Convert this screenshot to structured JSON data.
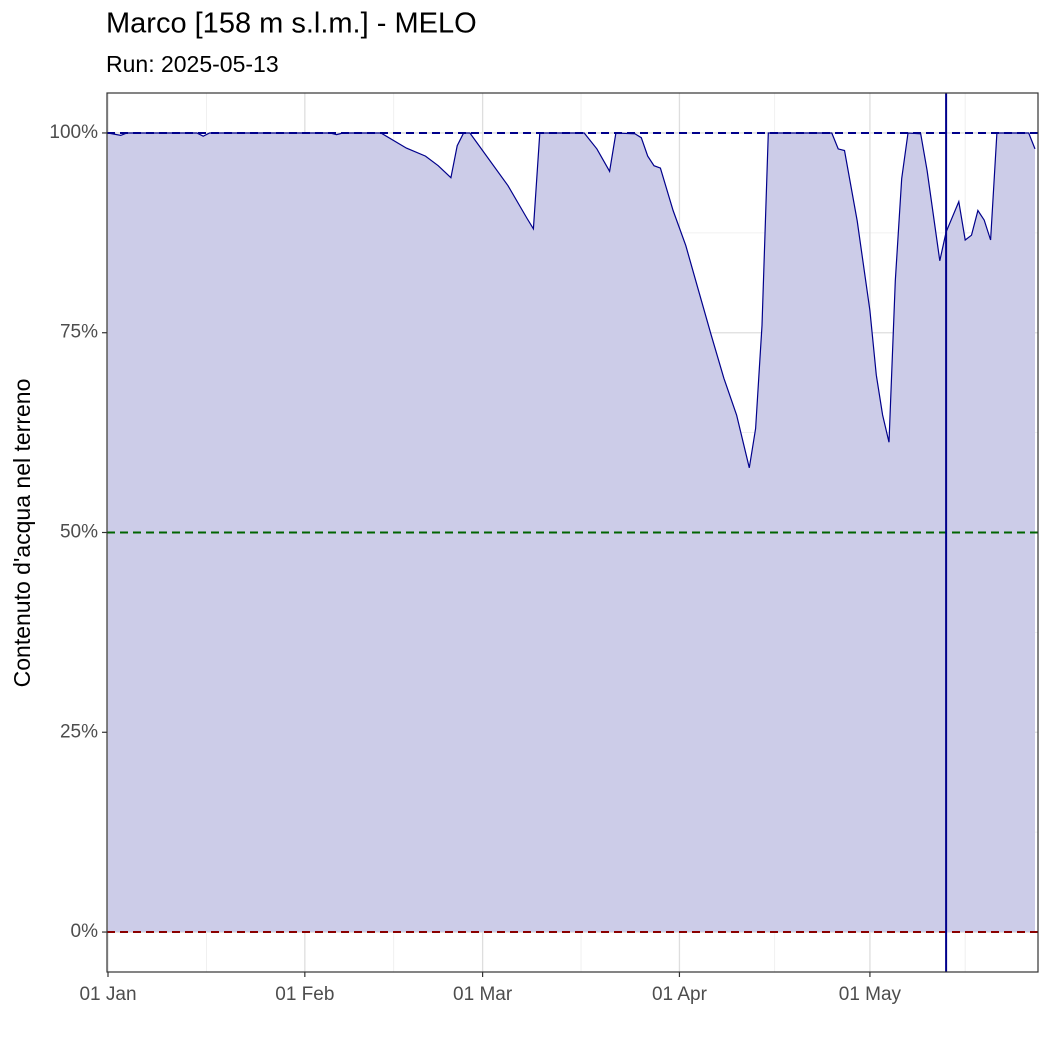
{
  "chart_data": {
    "type": "area",
    "title": "Marco [158 m s.l.m.] - MELO",
    "subtitle": "Run: 2025-05-13",
    "y_label": "Contenuto d'acqua nel terreno",
    "x": [
      "2025-01-01",
      "2025-01-03",
      "2025-01-04",
      "2025-01-15",
      "2025-01-16",
      "2025-01-17",
      "2025-02-05",
      "2025-02-06",
      "2025-02-07",
      "2025-02-13",
      "2025-02-17",
      "2025-02-20",
      "2025-02-22",
      "2025-02-24",
      "2025-02-25",
      "2025-02-26",
      "2025-02-27",
      "2025-03-05",
      "2025-03-08",
      "2025-03-09",
      "2025-03-10",
      "2025-03-17",
      "2025-03-19",
      "2025-03-21",
      "2025-03-22",
      "2025-03-25",
      "2025-03-26",
      "2025-03-27",
      "2025-03-28",
      "2025-03-29",
      "2025-03-31",
      "2025-04-02",
      "2025-04-04",
      "2025-04-06",
      "2025-04-08",
      "2025-04-10",
      "2025-04-12",
      "2025-04-13",
      "2025-04-14",
      "2025-04-15",
      "2025-04-25",
      "2025-04-26",
      "2025-04-27",
      "2025-04-29",
      "2025-05-01",
      "2025-05-02",
      "2025-05-03",
      "2025-05-04",
      "2025-05-05",
      "2025-05-06",
      "2025-05-07",
      "2025-05-09",
      "2025-05-10",
      "2025-05-12",
      "2025-05-13",
      "2025-05-15",
      "2025-05-16",
      "2025-05-17",
      "2025-05-18",
      "2025-05-19",
      "2025-05-20",
      "2025-05-21",
      "2025-05-26",
      "2025-05-27"
    ],
    "values": [
      100,
      99.7,
      100,
      100,
      99.6,
      100,
      100,
      99.8,
      100,
      100,
      98.1,
      97.1,
      95.9,
      94.4,
      98.4,
      100,
      100,
      93.4,
      89.3,
      88.0,
      100,
      100,
      98.0,
      95.2,
      100,
      99.9,
      99.4,
      97.1,
      95.9,
      95.6,
      90.3,
      85.9,
      80.3,
      74.7,
      69.3,
      64.7,
      58.1,
      63.0,
      75.9,
      100,
      100,
      98.0,
      97.8,
      89.0,
      77.8,
      69.7,
      64.7,
      61.3,
      81.5,
      94.3,
      100,
      99.9,
      95.3,
      84.0,
      87.6,
      91.4,
      86.6,
      87.2,
      90.3,
      89.1,
      86.6,
      100,
      100,
      98.0
    ],
    "color": "#00008b",
    "fill": "#ccccE8",
    "xlim": [
      "2025-01-01",
      "2025-05-27"
    ],
    "xticks": [
      {
        "value": "2025-01-01",
        "label": "01 Jan"
      },
      {
        "value": "2025-02-01",
        "label": "01 Feb"
      },
      {
        "value": "2025-03-01",
        "label": "01 Mar"
      },
      {
        "value": "2025-04-01",
        "label": "01 Apr"
      },
      {
        "value": "2025-05-01",
        "label": "01 May"
      }
    ],
    "ylim": [
      -5,
      105
    ],
    "yticks": [
      {
        "value": 0,
        "label": "0%"
      },
      {
        "value": 25,
        "label": "25%"
      },
      {
        "value": 50,
        "label": "50%"
      },
      {
        "value": 75,
        "label": "75%"
      },
      {
        "value": 100,
        "label": "100%"
      }
    ],
    "grid": true,
    "hlines": [
      {
        "value": 100,
        "color": "#00008b"
      },
      {
        "value": 50,
        "color": "#006400"
      },
      {
        "value": 0,
        "color": "#8b0000"
      }
    ],
    "vline": {
      "value": "2025-05-13",
      "color": "#00008b"
    }
  }
}
